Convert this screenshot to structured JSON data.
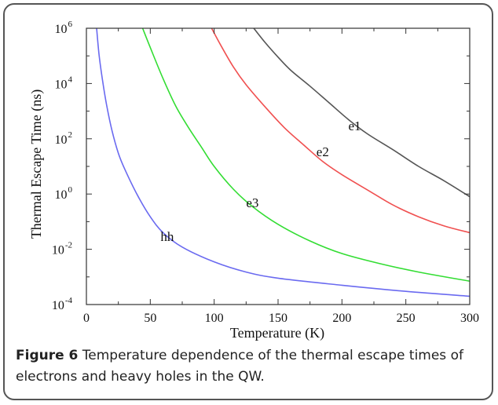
{
  "caption": {
    "figure_number": "Figure 6",
    "text": "Temperature dependence of the thermal escape times of electrons and heavy holes in the QW."
  },
  "chart_data": {
    "type": "line",
    "xlabel": "Temperature (K)",
    "ylabel": "Thermal Escape Time (ns)",
    "xlim": [
      0,
      300
    ],
    "ylim": [
      0.0001,
      1000000
    ],
    "yscale": "log",
    "xticks": [
      0,
      50,
      100,
      150,
      200,
      250,
      300
    ],
    "yticks": [
      {
        "value": 0.0001,
        "base": "10",
        "exp": "-4"
      },
      {
        "value": 0.01,
        "base": "10",
        "exp": "-2"
      },
      {
        "value": 1,
        "base": "10",
        "exp": "0"
      },
      {
        "value": 100,
        "base": "10",
        "exp": "2"
      },
      {
        "value": 10000,
        "base": "10",
        "exp": "4"
      },
      {
        "value": 1000000,
        "base": "10",
        "exp": "6"
      }
    ],
    "grid": false,
    "series": [
      {
        "name": "e1",
        "color": "#555555",
        "x": [
          131,
          140,
          150,
          160,
          175,
          190,
          205,
          220,
          240,
          260,
          280,
          300
        ],
        "y": [
          1000000,
          300000,
          90000,
          30000,
          8000,
          2000,
          500,
          150,
          40,
          10,
          3,
          0.8
        ]
      },
      {
        "name": "e2",
        "color": "#f05050",
        "x": [
          98,
          105,
          115,
          125,
          140,
          155,
          170,
          185,
          200,
          220,
          240,
          260,
          280,
          300
        ],
        "y": [
          1000000,
          250000,
          40000,
          9000,
          1400,
          250,
          60,
          15,
          5,
          1.4,
          0.4,
          0.15,
          0.07,
          0.04
        ]
      },
      {
        "name": "e3",
        "color": "#33dd33",
        "x": [
          44,
          50,
          60,
          70,
          80,
          90,
          100,
          115,
          130,
          150,
          175,
          200,
          230,
          260,
          300
        ],
        "y": [
          1000000,
          200000,
          15000,
          1500,
          250,
          50,
          10,
          1.5,
          0.35,
          0.08,
          0.02,
          0.007,
          0.003,
          0.0015,
          0.0007
        ]
      },
      {
        "name": "hh",
        "color": "#6a6af0",
        "x": [
          8,
          10,
          13,
          16,
          20,
          25,
          30,
          40,
          50,
          60,
          75,
          100,
          125,
          150,
          200,
          250,
          300
        ],
        "y": [
          1000000,
          100000,
          10000,
          1500,
          200,
          30,
          8,
          0.9,
          0.15,
          0.04,
          0.012,
          0.0035,
          0.0015,
          0.0009,
          0.0005,
          0.0003,
          0.0002
        ]
      }
    ],
    "annotations": [
      {
        "text": "e1",
        "x": 205,
        "y": 300
      },
      {
        "text": "e2",
        "x": 180,
        "y": 35
      },
      {
        "text": "e3",
        "x": 125,
        "y": 0.5
      },
      {
        "text": "hh",
        "x": 58,
        "y": 0.03
      }
    ]
  }
}
